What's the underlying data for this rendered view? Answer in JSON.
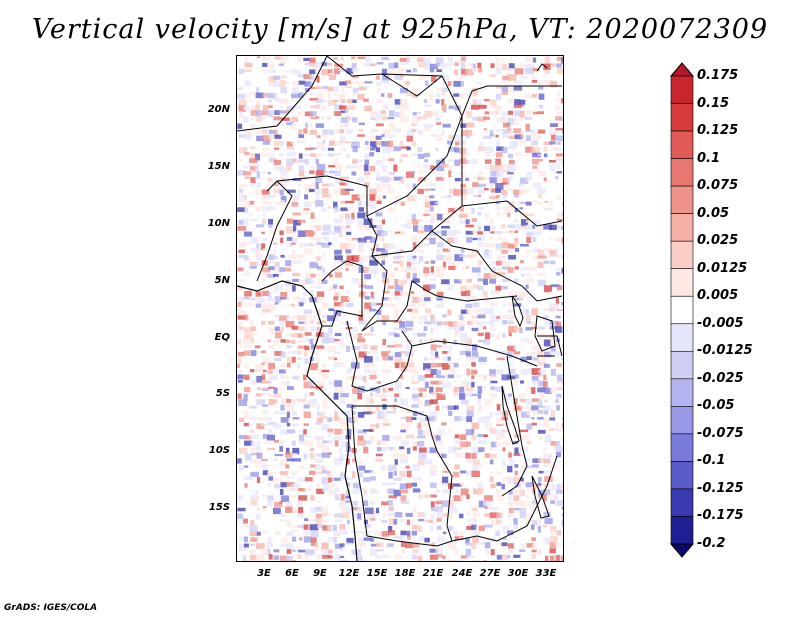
{
  "title": "Vertical velocity [m/s] at 925hPa, VT: 2020072309",
  "lat_labels": [
    "20N",
    "15N",
    "10N",
    "5N",
    "EQ",
    "5S",
    "10S",
    "15S"
  ],
  "lon_labels": [
    "3E",
    "6E",
    "9E",
    "12E",
    "15E",
    "18E",
    "21E",
    "24E",
    "27E",
    "30E",
    "33E"
  ],
  "colorbar": {
    "labels": [
      "0.175",
      "0.15",
      "0.125",
      "0.1",
      "0.075",
      "0.05",
      "0.025",
      "0.0125",
      "0.005",
      "-0.005",
      "-0.0125",
      "-0.025",
      "-0.05",
      "-0.075",
      "-0.1",
      "-0.125",
      "-0.175",
      "-0.2"
    ],
    "colors": [
      "#b2182b",
      "#c8262f",
      "#d73c3c",
      "#e05a56",
      "#e8776f",
      "#f0938a",
      "#f5b0a7",
      "#facdc6",
      "#fde8e4",
      "#ffffff",
      "#e6e6fb",
      "#cfcff6",
      "#b4b4f0",
      "#9898e6",
      "#7a7ad9",
      "#5a5ac8",
      "#3a3ab0",
      "#1f1f94",
      "#0a0a6e"
    ]
  },
  "credit": "GrADS: IGES/COLA"
}
